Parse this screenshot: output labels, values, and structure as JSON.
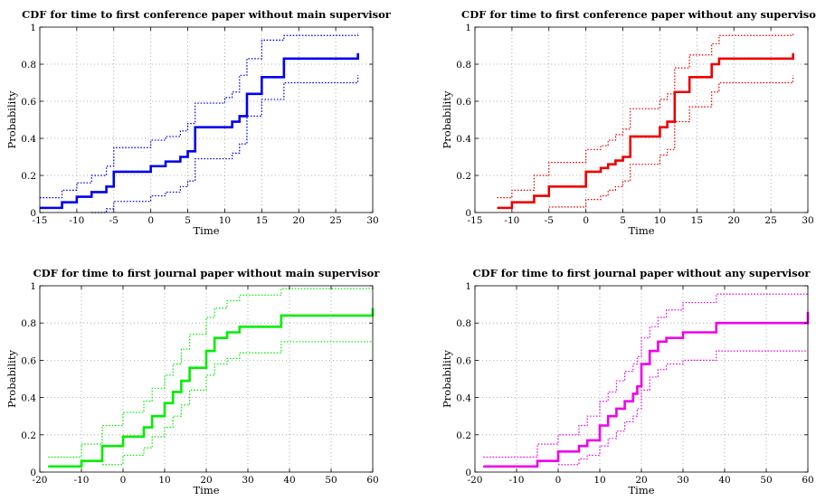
{
  "chart_data": [
    {
      "type": "line",
      "title": "CDF for time to first conference paper without main supervisor",
      "xlabel": "Time",
      "ylabel": "Probability",
      "xlim": [
        -15,
        30
      ],
      "ylim": [
        0,
        1
      ],
      "xticks": [
        "-15",
        "-10",
        "-5",
        "0",
        "5",
        "10",
        "15",
        "20",
        "25",
        "30"
      ],
      "yticks": [
        "0",
        "0.2",
        "0.4",
        "0.6",
        "0.8",
        "1"
      ],
      "grid": true,
      "color": "#0000ee",
      "series": [
        {
          "role": "estimate",
          "style": "solid",
          "x": [
            -15,
            -12,
            -10,
            -8,
            -6,
            -5,
            0,
            2,
            4,
            5,
            6,
            11,
            12,
            13,
            15,
            18,
            28,
            28
          ],
          "y": [
            0.025,
            0.055,
            0.085,
            0.11,
            0.14,
            0.22,
            0.25,
            0.275,
            0.3,
            0.33,
            0.46,
            0.49,
            0.52,
            0.64,
            0.73,
            0.83,
            0.83,
            0.86
          ]
        },
        {
          "role": "upper",
          "style": "dotted",
          "x": [
            -15,
            -12,
            -10,
            -8,
            -6,
            -5,
            0,
            2,
            4,
            5,
            6,
            10,
            11,
            12,
            13,
            15,
            18,
            28,
            28
          ],
          "y": [
            0.08,
            0.12,
            0.16,
            0.2,
            0.25,
            0.35,
            0.39,
            0.41,
            0.44,
            0.48,
            0.59,
            0.62,
            0.65,
            0.74,
            0.83,
            0.93,
            0.955,
            0.955,
            0.97
          ]
        },
        {
          "role": "lower",
          "style": "dotted",
          "x": [
            -8,
            -6,
            -5,
            0,
            2,
            4,
            5,
            6,
            11,
            12,
            13,
            15,
            18,
            28,
            28
          ],
          "y": [
            0.0,
            0.02,
            0.06,
            0.09,
            0.11,
            0.14,
            0.17,
            0.29,
            0.32,
            0.37,
            0.52,
            0.61,
            0.7,
            0.7,
            0.74
          ]
        }
      ]
    },
    {
      "type": "line",
      "title": "CDF for time to first conference paper without any supervisor",
      "xlabel": "Time",
      "ylabel": "Probability",
      "xlim": [
        -15,
        30
      ],
      "ylim": [
        0,
        1
      ],
      "xticks": [
        "-15",
        "-10",
        "-5",
        "0",
        "5",
        "10",
        "15",
        "20",
        "25",
        "30"
      ],
      "yticks": [
        "0",
        "0.2",
        "0.4",
        "0.6",
        "0.8",
        "1"
      ],
      "grid": true,
      "color": "#ee0000",
      "series": [
        {
          "role": "estimate",
          "style": "solid",
          "x": [
            -12,
            -10,
            -7,
            -5,
            0,
            2,
            3,
            4,
            5,
            6,
            10,
            11,
            12,
            14,
            17,
            18,
            28,
            28
          ],
          "y": [
            0.025,
            0.055,
            0.09,
            0.14,
            0.22,
            0.24,
            0.26,
            0.28,
            0.3,
            0.41,
            0.46,
            0.49,
            0.65,
            0.73,
            0.8,
            0.83,
            0.83,
            0.86
          ]
        },
        {
          "role": "upper",
          "style": "dotted",
          "x": [
            -12,
            -10,
            -7,
            -5,
            0,
            2,
            3,
            4,
            5,
            6,
            10,
            11,
            12,
            14,
            17,
            18,
            28,
            28
          ],
          "y": [
            0.08,
            0.12,
            0.2,
            0.27,
            0.34,
            0.36,
            0.39,
            0.42,
            0.45,
            0.56,
            0.61,
            0.64,
            0.78,
            0.85,
            0.91,
            0.955,
            0.955,
            0.97
          ]
        },
        {
          "role": "lower",
          "style": "dotted",
          "x": [
            -5,
            0,
            2,
            3,
            4,
            5,
            6,
            10,
            11,
            12,
            14,
            17,
            18,
            28,
            28
          ],
          "y": [
            0.03,
            0.07,
            0.09,
            0.12,
            0.14,
            0.17,
            0.26,
            0.31,
            0.34,
            0.49,
            0.57,
            0.65,
            0.7,
            0.7,
            0.74
          ]
        }
      ]
    },
    {
      "type": "line",
      "title": "CDF for time to first journal paper without main supervisor",
      "xlabel": "Time",
      "ylabel": "Probability",
      "xlim": [
        -20,
        60
      ],
      "ylim": [
        0,
        1
      ],
      "xticks": [
        "-20",
        "-10",
        "0",
        "10",
        "20",
        "30",
        "40",
        "50",
        "60"
      ],
      "yticks": [
        "0",
        "0.2",
        "0.4",
        "0.6",
        "0.8",
        "1"
      ],
      "grid": true,
      "color": "#00ee00",
      "series": [
        {
          "role": "estimate",
          "style": "solid",
          "x": [
            -18,
            -10,
            -5,
            0,
            5,
            7,
            10,
            12,
            14,
            16,
            20,
            22,
            25,
            28,
            38,
            60,
            60
          ],
          "y": [
            0.03,
            0.06,
            0.14,
            0.19,
            0.24,
            0.3,
            0.37,
            0.43,
            0.49,
            0.56,
            0.65,
            0.72,
            0.75,
            0.78,
            0.84,
            0.84,
            0.88
          ]
        },
        {
          "role": "upper",
          "style": "dotted",
          "x": [
            -18,
            -10,
            -5,
            0,
            5,
            7,
            10,
            12,
            14,
            16,
            20,
            22,
            25,
            28,
            38,
            60
          ],
          "y": [
            0.08,
            0.15,
            0.25,
            0.32,
            0.38,
            0.45,
            0.52,
            0.58,
            0.66,
            0.74,
            0.83,
            0.88,
            0.92,
            0.95,
            0.985,
            0.985
          ]
        },
        {
          "role": "lower",
          "style": "dotted",
          "x": [
            -5,
            0,
            5,
            7,
            10,
            12,
            14,
            16,
            20,
            22,
            25,
            28,
            38,
            60
          ],
          "y": [
            0.04,
            0.09,
            0.13,
            0.19,
            0.24,
            0.3,
            0.36,
            0.44,
            0.52,
            0.58,
            0.61,
            0.64,
            0.7,
            0.7
          ]
        }
      ]
    },
    {
      "type": "line",
      "title": "CDF for time to first journal paper without any supervisor",
      "xlabel": "Time",
      "ylabel": "Probability",
      "xlim": [
        -20,
        60
      ],
      "ylim": [
        0,
        1
      ],
      "xticks": [
        "-20",
        "-10",
        "0",
        "10",
        "20",
        "30",
        "40",
        "50",
        "60"
      ],
      "yticks": [
        "0",
        "0.2",
        "0.4",
        "0.6",
        "0.8",
        "1"
      ],
      "grid": true,
      "color": "#ee00ee",
      "series": [
        {
          "role": "estimate",
          "style": "solid",
          "x": [
            -18,
            -5,
            0,
            5,
            7,
            10,
            12,
            14,
            16,
            18,
            19,
            20,
            22,
            24,
            26,
            30,
            38,
            60,
            60
          ],
          "y": [
            0.03,
            0.06,
            0.11,
            0.14,
            0.17,
            0.25,
            0.3,
            0.34,
            0.38,
            0.42,
            0.46,
            0.58,
            0.65,
            0.7,
            0.72,
            0.75,
            0.8,
            0.8,
            0.86
          ]
        },
        {
          "role": "upper",
          "style": "dotted",
          "x": [
            -18,
            -5,
            0,
            5,
            7,
            10,
            12,
            14,
            16,
            18,
            19,
            20,
            22,
            24,
            26,
            30,
            38,
            60
          ],
          "y": [
            0.08,
            0.15,
            0.2,
            0.25,
            0.3,
            0.38,
            0.43,
            0.49,
            0.54,
            0.58,
            0.62,
            0.72,
            0.78,
            0.83,
            0.87,
            0.91,
            0.955,
            0.955
          ]
        },
        {
          "role": "lower",
          "style": "dotted",
          "x": [
            0,
            5,
            7,
            10,
            12,
            14,
            16,
            18,
            19,
            20,
            22,
            24,
            26,
            30,
            38,
            60
          ],
          "y": [
            0.04,
            0.07,
            0.09,
            0.14,
            0.18,
            0.22,
            0.27,
            0.3,
            0.34,
            0.44,
            0.51,
            0.55,
            0.58,
            0.6,
            0.65,
            0.65
          ]
        }
      ]
    }
  ]
}
